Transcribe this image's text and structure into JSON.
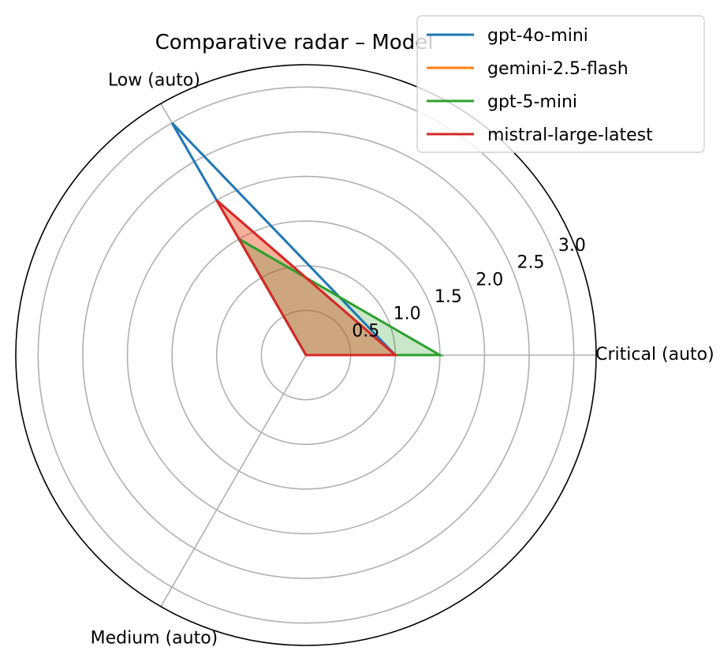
{
  "chart_data": {
    "type": "radar",
    "title": "Comparative radar – Model",
    "axes": [
      "Critical (auto)",
      "Low (auto)",
      "Medium (auto)"
    ],
    "rlim": [
      0,
      3.25
    ],
    "rticks": [
      0.5,
      1.0,
      1.5,
      2.0,
      2.5,
      3.0
    ],
    "rtick_labels": [
      "0.5",
      "1.0",
      "1.5",
      "2.0",
      "2.5",
      "3.0"
    ],
    "grid": true,
    "legend_position": "top-right",
    "series": [
      {
        "name": "gpt-4o-mini",
        "color": "#1f77b4",
        "values": [
          1.0,
          3.0,
          0.0
        ],
        "fill": false
      },
      {
        "name": "gemini-2.5-flash",
        "color": "#ff7f0e",
        "values": [
          1.0,
          2.0,
          0.0
        ],
        "fill": true
      },
      {
        "name": "gpt-5-mini",
        "color": "#2ca02c",
        "values": [
          1.5,
          1.5,
          0.0
        ],
        "fill": true
      },
      {
        "name": "mistral-large-latest",
        "color": "#d62728",
        "values": [
          1.0,
          2.0,
          0.0
        ],
        "fill": true
      }
    ]
  }
}
